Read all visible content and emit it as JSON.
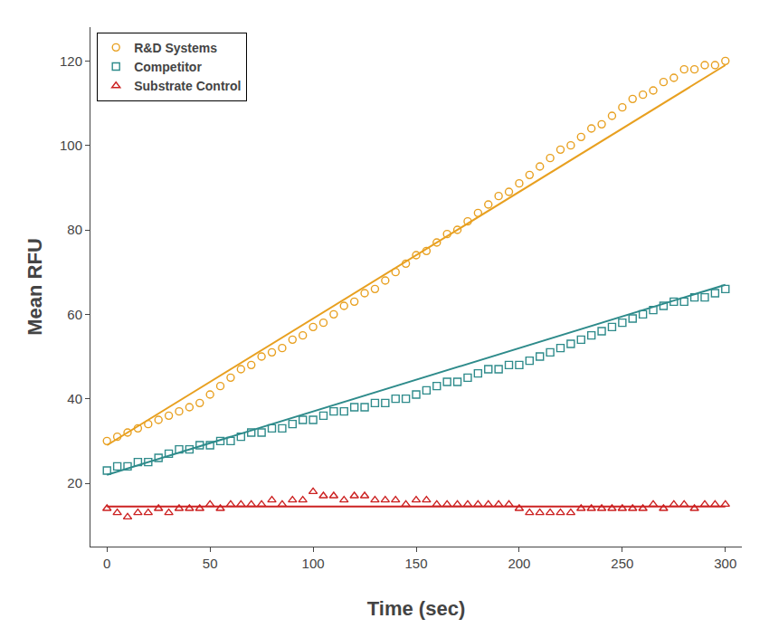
{
  "chart_data": {
    "type": "scatter",
    "xlabel": "Time (sec)",
    "ylabel": "Mean RFU",
    "xlim": [
      -8,
      308
    ],
    "ylim": [
      5,
      128
    ],
    "xticks": [
      0,
      50,
      100,
      150,
      200,
      250,
      300
    ],
    "yticks": [
      20,
      40,
      60,
      80,
      100,
      120
    ],
    "grid": false,
    "legend": "upper left",
    "x": [
      0,
      5,
      10,
      15,
      20,
      25,
      30,
      35,
      40,
      45,
      50,
      55,
      60,
      65,
      70,
      75,
      80,
      85,
      90,
      95,
      100,
      105,
      110,
      115,
      120,
      125,
      130,
      135,
      140,
      145,
      150,
      155,
      160,
      165,
      170,
      175,
      180,
      185,
      190,
      195,
      200,
      205,
      210,
      215,
      220,
      225,
      230,
      235,
      240,
      245,
      250,
      255,
      260,
      265,
      270,
      275,
      280,
      285,
      290,
      295,
      300
    ],
    "series": [
      {
        "name": "R&D Systems",
        "color": "#E8A020",
        "marker": "circle",
        "values": [
          30,
          31,
          32,
          33,
          34,
          35,
          36,
          37,
          38,
          39,
          41,
          43,
          45,
          47,
          48,
          50,
          51,
          52,
          54,
          55,
          57,
          58,
          60,
          62,
          63,
          65,
          66,
          68,
          70,
          72,
          74,
          75,
          77,
          79,
          80,
          82,
          84,
          86,
          88,
          89,
          91,
          93,
          95,
          97,
          99,
          100,
          102,
          104,
          105,
          107,
          109,
          111,
          112,
          113,
          115,
          116,
          118,
          118,
          119,
          119,
          120
        ],
        "fit": {
          "x": [
            0,
            300
          ],
          "y": [
            29,
            119
          ]
        }
      },
      {
        "name": "Competitor",
        "color": "#2E8B8B",
        "marker": "square",
        "values": [
          23,
          24,
          24,
          25,
          25,
          26,
          27,
          28,
          28,
          29,
          29,
          30,
          30,
          31,
          32,
          32,
          33,
          33,
          34,
          35,
          35,
          36,
          37,
          37,
          38,
          38,
          39,
          39,
          40,
          40,
          41,
          42,
          43,
          44,
          44,
          45,
          46,
          47,
          47,
          48,
          48,
          49,
          50,
          51,
          52,
          53,
          54,
          55,
          56,
          57,
          58,
          59,
          60,
          61,
          62,
          63,
          63,
          64,
          64,
          65,
          66
        ],
        "fit": {
          "x": [
            0,
            300
          ],
          "y": [
            22,
            67
          ]
        }
      },
      {
        "name": "Substrate Control",
        "color": "#CC2222",
        "marker": "triangle-up",
        "values": [
          14,
          13,
          12,
          13,
          13,
          14,
          13,
          14,
          14,
          14,
          15,
          14,
          15,
          15,
          15,
          15,
          16,
          15,
          16,
          16,
          18,
          17,
          17,
          16,
          17,
          17,
          16,
          16,
          16,
          15,
          16,
          16,
          15,
          15,
          15,
          15,
          15,
          15,
          15,
          15,
          14,
          13,
          13,
          13,
          13,
          13,
          14,
          14,
          14,
          14,
          14,
          14,
          14,
          15,
          14,
          15,
          15,
          14,
          15,
          15,
          15
        ],
        "fit": {
          "x": [
            0,
            300
          ],
          "y": [
            14.5,
            14.5
          ]
        }
      }
    ]
  }
}
